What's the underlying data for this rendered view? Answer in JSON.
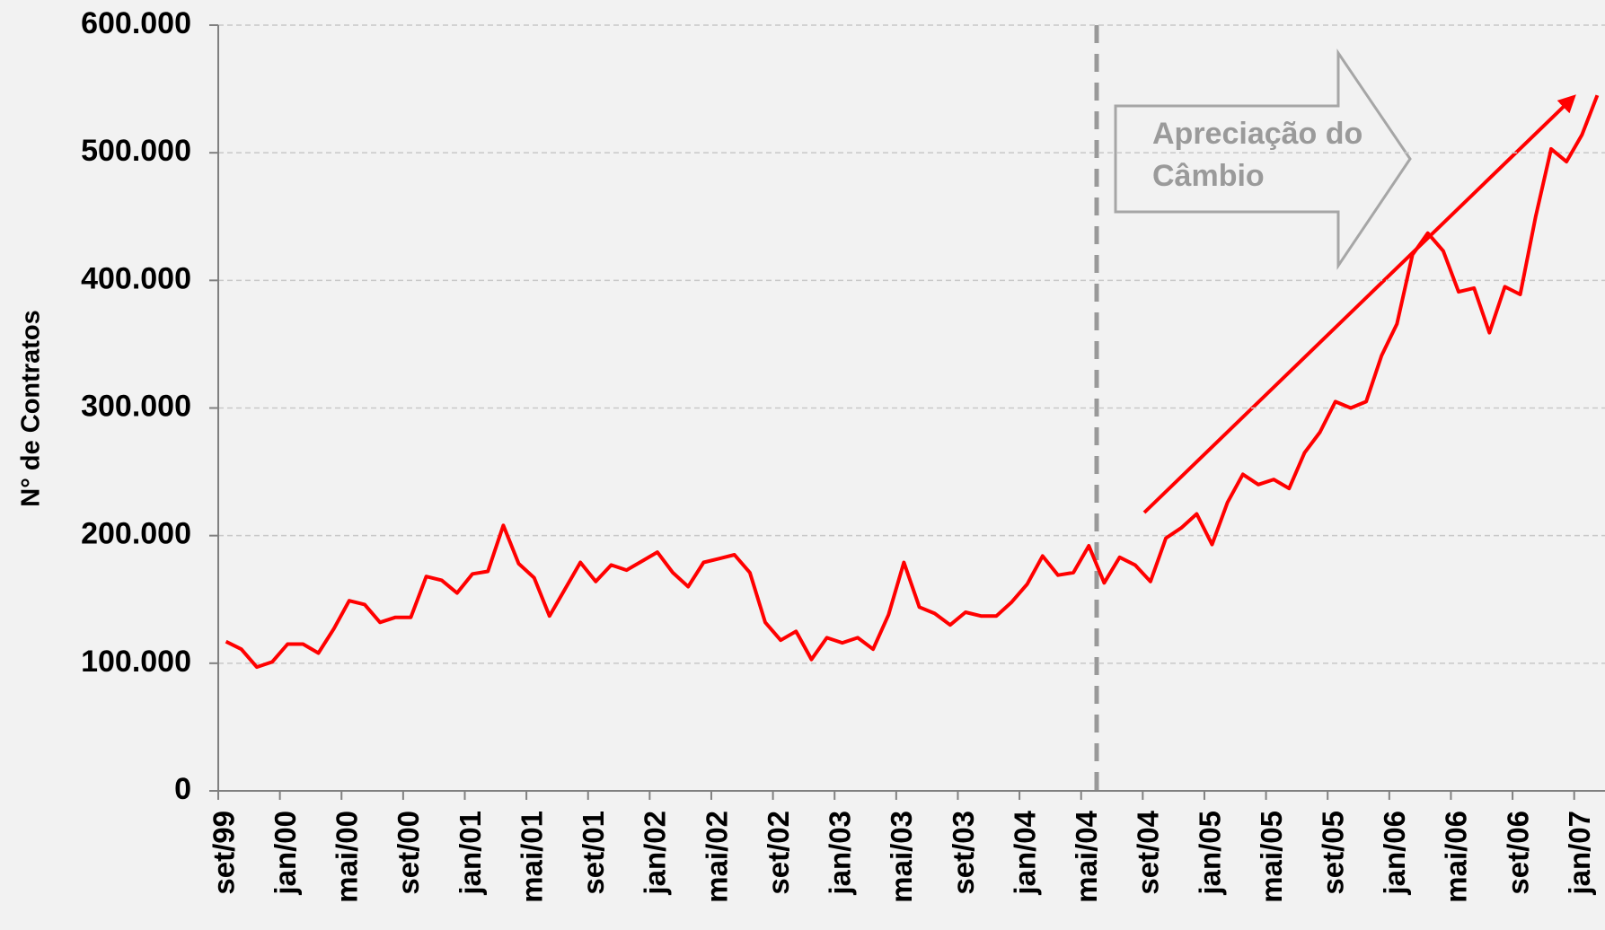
{
  "chart_data": {
    "type": "line",
    "y_label": "N° de Contratos",
    "categories": [
      "set/99",
      null,
      null,
      null,
      "jan/00",
      null,
      null,
      null,
      "mai/00",
      null,
      null,
      null,
      "set/00",
      null,
      null,
      null,
      "jan/01",
      null,
      null,
      null,
      "mai/01",
      null,
      null,
      null,
      "set/01",
      null,
      null,
      null,
      "jan/02",
      null,
      null,
      null,
      "mai/02",
      null,
      null,
      null,
      "set/02",
      null,
      null,
      null,
      "jan/03",
      null,
      null,
      null,
      "mai/03",
      null,
      null,
      null,
      "set/03",
      null,
      null,
      null,
      "jan/04",
      null,
      null,
      null,
      "mai/04",
      null,
      null,
      null,
      "set/04",
      null,
      null,
      null,
      "jan/05",
      null,
      null,
      null,
      "mai/05",
      null,
      null,
      null,
      "set/05",
      null,
      null,
      null,
      "jan/06",
      null,
      null,
      null,
      "mai/06",
      null,
      null,
      null,
      "set/06",
      null,
      null,
      null,
      "jan/07",
      null
    ],
    "series": [
      {
        "color": "#ff0000",
        "values": [
          117000,
          111000,
          97000,
          101000,
          115000,
          115000,
          108000,
          127000,
          149000,
          146000,
          132000,
          136000,
          136000,
          168000,
          165000,
          155000,
          170000,
          172000,
          208000,
          178000,
          167000,
          137000,
          158000,
          179000,
          164000,
          177000,
          173000,
          180000,
          187000,
          171000,
          160000,
          179000,
          182000,
          185000,
          171000,
          132000,
          118000,
          125000,
          103000,
          120000,
          116000,
          120000,
          111000,
          138000,
          179000,
          144000,
          139000,
          130000,
          140000,
          137000,
          137000,
          148000,
          162000,
          184000,
          169000,
          171000,
          192000,
          163000,
          183000,
          177000,
          164000,
          198000,
          206000,
          217000,
          193000,
          226000,
          248000,
          240000,
          244000,
          237000,
          265000,
          281000,
          305000,
          300000,
          305000,
          341000,
          366000,
          420000,
          437000,
          423000,
          391000,
          394000,
          359000,
          395000,
          389000,
          450000,
          503000,
          493000,
          514000,
          545000
        ]
      }
    ],
    "ylim": [
      0,
      600000
    ],
    "yticks": [
      0,
      {
        "value": 100000,
        "label": "100.000"
      },
      {
        "value": 200000,
        "label": "200.000"
      },
      {
        "value": 300000,
        "label": "300.000"
      },
      {
        "value": 400000,
        "label": "400.000"
      },
      {
        "value": 500000,
        "label": "500.000"
      },
      {
        "value": 600000,
        "label": "600.000"
      }
    ],
    "grid": true,
    "annotation": [
      "Apreciação do",
      "Câmbio"
    ]
  }
}
